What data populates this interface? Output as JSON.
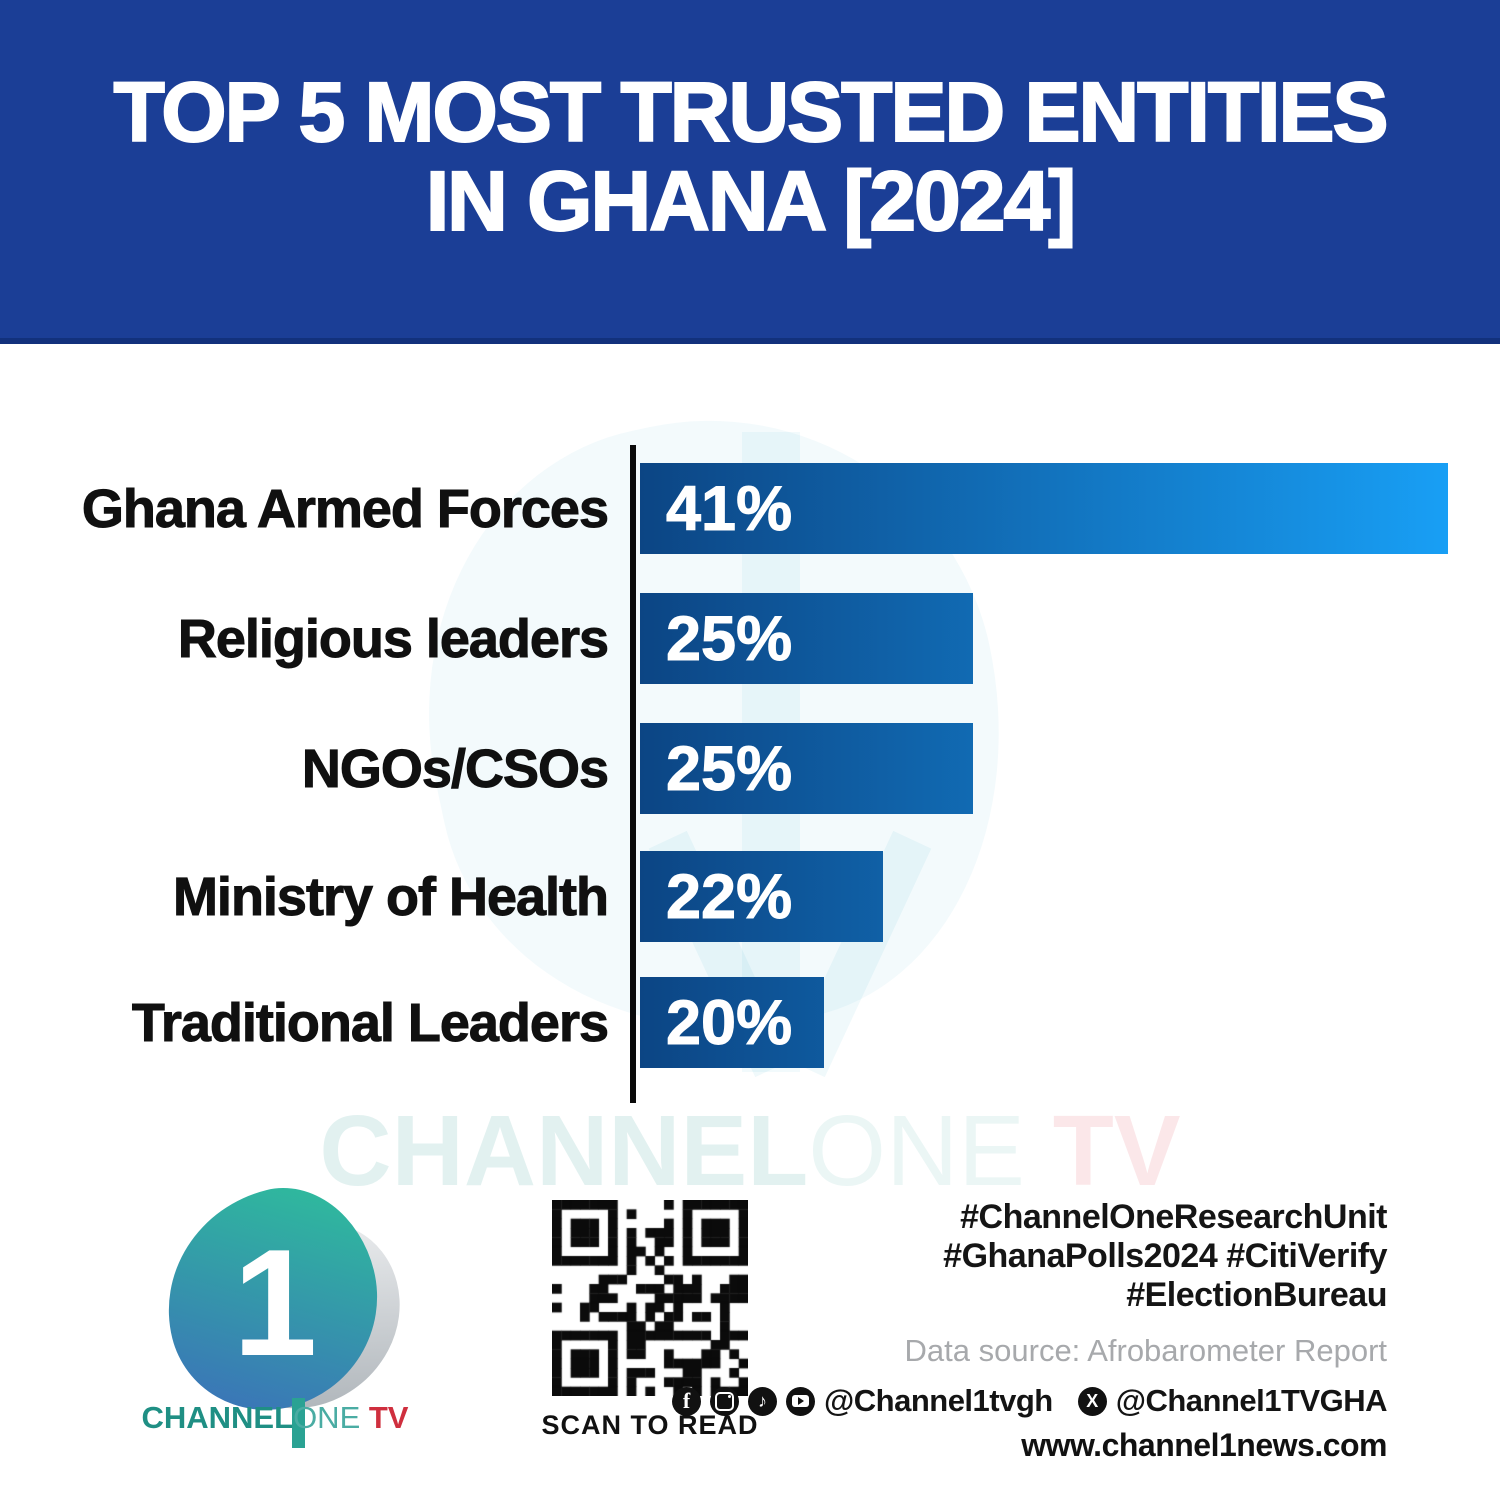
{
  "header": {
    "title_line1": "TOP 5 MOST TRUSTED ENTITIES",
    "title_line2": "IN GHANA [2024]",
    "bg_color": "#1b3e96"
  },
  "chart_data": {
    "type": "bar",
    "orientation": "horizontal",
    "title": "Top 5 most trusted entities in Ghana [2024]",
    "categories": [
      "Ghana Armed Forces",
      "Religious leaders",
      "NGOs/CSOs",
      "Ministry of Health",
      "Traditional Leaders"
    ],
    "values": [
      41,
      25,
      25,
      22,
      20
    ],
    "value_labels": [
      "41%",
      "25%",
      "25%",
      "22%",
      "20%"
    ],
    "value_unit": "%",
    "bar_gradient": [
      "#0c4584",
      "#189ff5"
    ],
    "axis_color": "#0a0a0a",
    "grid": false,
    "legend": false
  },
  "watermark": {
    "part1": "CHANNEL",
    "part2": "ONE",
    "part3": " TV"
  },
  "footer": {
    "logo": {
      "numeral": "1",
      "brand_part1": "CHANNEL",
      "brand_part2": "ONE",
      "brand_part3": " TV",
      "teal": "#1f8f84",
      "red": "#cf2f3e"
    },
    "qr_label": "SCAN TO READ",
    "hashtags": [
      "#ChannelOneResearchUnit",
      "#GhanaPolls2024 #CitiVerify",
      "#ElectionBureau"
    ],
    "data_source": "Data source: Afrobarometer Report",
    "social": {
      "icons": [
        {
          "name": "facebook-icon",
          "glyph": "f"
        },
        {
          "name": "instagram-icon",
          "glyph": ""
        },
        {
          "name": "tiktok-icon",
          "glyph": "♪"
        },
        {
          "name": "youtube-icon",
          "glyph": ""
        },
        {
          "name": "x-icon",
          "glyph": "X"
        }
      ],
      "handle1": "@Channel1tvgh",
      "handle2": "@Channel1TVGHA",
      "website": "www.channel1news.com"
    }
  }
}
